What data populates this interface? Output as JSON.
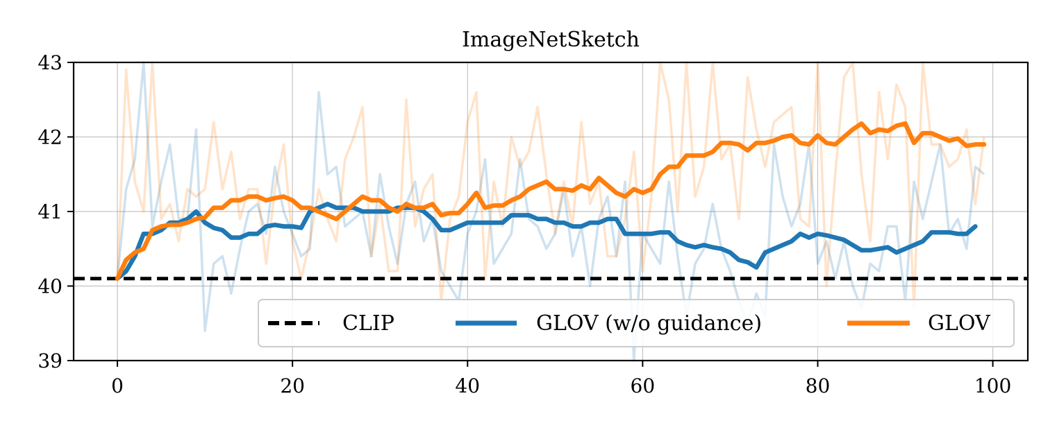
{
  "chart_data": {
    "type": "line",
    "title": "ImageNetSketch",
    "xlabel": "",
    "ylabel": "",
    "xlim": [
      -5,
      104
    ],
    "ylim": [
      39,
      43
    ],
    "xticks": [
      0,
      20,
      40,
      60,
      80,
      100
    ],
    "yticks": [
      39,
      40,
      41,
      42,
      43
    ],
    "grid": true,
    "legend": {
      "placement": "lower-right",
      "columns": 3
    },
    "baseline": {
      "name": "CLIP",
      "value": 40.1,
      "color": "#000000",
      "style": "dashed"
    },
    "series": [
      {
        "name": "GLOV (w/o guidance)",
        "color": "#1f77b4",
        "smoothed": [
          40.1,
          40.2,
          40.4,
          40.7,
          40.7,
          40.75,
          40.85,
          40.85,
          40.9,
          41.0,
          40.85,
          40.78,
          40.75,
          40.65,
          40.65,
          40.7,
          40.7,
          40.8,
          40.82,
          40.8,
          40.8,
          40.78,
          41.0,
          41.05,
          41.1,
          41.05,
          41.05,
          41.05,
          41.0,
          41.0,
          41.0,
          41.0,
          41.05,
          41.05,
          41.05,
          41.0,
          40.9,
          40.75,
          40.75,
          40.8,
          40.85,
          40.85,
          40.85,
          40.85,
          40.85,
          40.95,
          40.95,
          40.95,
          40.9,
          40.9,
          40.85,
          40.85,
          40.8,
          40.8,
          40.85,
          40.85,
          40.9,
          40.9,
          40.7,
          40.7,
          40.7,
          40.7,
          40.72,
          40.72,
          40.6,
          40.55,
          40.52,
          40.55,
          40.52,
          40.5,
          40.45,
          40.35,
          40.32,
          40.25,
          40.45,
          40.5,
          40.55,
          40.6,
          40.7,
          40.65,
          40.7,
          40.68,
          40.65,
          40.62,
          40.55,
          40.48,
          40.48,
          40.5,
          40.52,
          40.45,
          40.5,
          40.55,
          40.6,
          40.72,
          40.72,
          40.72,
          40.7,
          40.7,
          40.8
        ],
        "raw": [
          40.1,
          41.3,
          41.7,
          43.0,
          40.8,
          41.4,
          41.9,
          40.9,
          40.9,
          42.1,
          39.4,
          40.3,
          40.4,
          39.9,
          40.5,
          41.0,
          41.1,
          40.7,
          41.6,
          41.0,
          40.7,
          40.4,
          40.5,
          42.6,
          41.5,
          41.6,
          40.8,
          40.9,
          41.0,
          40.4,
          41.5,
          40.8,
          40.3,
          41.1,
          41.4,
          40.6,
          40.9,
          40.2,
          40.0,
          39.8,
          40.7,
          41.0,
          41.7,
          40.3,
          40.5,
          40.7,
          41.7,
          40.9,
          40.8,
          40.5,
          40.7,
          41.3,
          40.4,
          40.8,
          40.0,
          40.9,
          41.2,
          40.4,
          41.4,
          38.9,
          40.7,
          40.5,
          40.3,
          41.4,
          40.4,
          39.6,
          40.3,
          40.5,
          41.1,
          40.5,
          40.2,
          39.8,
          39.5,
          39.9,
          39.6,
          41.9,
          41.2,
          40.8,
          41.1,
          41.9,
          40.3,
          40.6,
          40.1,
          40.6,
          40.0,
          39.7,
          40.3,
          40.2,
          40.8,
          40.8,
          39.8,
          41.4,
          40.9,
          41.4,
          41.9,
          40.7,
          40.9,
          40.5,
          41.6,
          41.5
        ]
      },
      {
        "name": "GLOV",
        "color": "#ff7f0e",
        "smoothed": [
          40.1,
          40.35,
          40.45,
          40.5,
          40.75,
          40.8,
          40.82,
          40.82,
          40.85,
          40.9,
          40.92,
          41.05,
          41.05,
          41.15,
          41.15,
          41.2,
          41.2,
          41.15,
          41.18,
          41.2,
          41.15,
          41.05,
          41.05,
          41.0,
          40.95,
          40.9,
          41.0,
          41.1,
          41.2,
          41.15,
          41.15,
          41.05,
          41.0,
          41.1,
          41.05,
          41.05,
          41.1,
          40.95,
          40.98,
          40.98,
          41.1,
          41.25,
          41.05,
          41.08,
          41.08,
          41.15,
          41.2,
          41.3,
          41.35,
          41.4,
          41.3,
          41.3,
          41.28,
          41.35,
          41.3,
          41.45,
          41.35,
          41.25,
          41.2,
          41.3,
          41.25,
          41.3,
          41.5,
          41.6,
          41.6,
          41.75,
          41.75,
          41.75,
          41.8,
          41.92,
          41.92,
          41.9,
          41.82,
          41.92,
          41.92,
          41.95,
          42.0,
          42.02,
          41.92,
          41.9,
          42.02,
          41.92,
          41.9,
          42.0,
          42.1,
          42.18,
          42.05,
          42.1,
          42.08,
          42.15,
          42.18,
          41.92,
          42.05,
          42.05,
          42.0,
          41.95,
          41.98,
          41.88,
          41.9,
          41.9
        ],
        "raw": [
          40.1,
          42.9,
          41.4,
          41.0,
          43.0,
          40.9,
          41.1,
          40.6,
          41.3,
          41.2,
          41.3,
          42.2,
          41.3,
          41.8,
          40.9,
          41.3,
          41.3,
          40.3,
          41.3,
          41.9,
          40.6,
          40.1,
          40.6,
          41.3,
          40.9,
          40.6,
          41.7,
          42.0,
          42.4,
          40.4,
          41.1,
          40.2,
          40.2,
          42.5,
          40.8,
          41.3,
          41.5,
          39.8,
          40.9,
          41.2,
          42.2,
          42.6,
          40.1,
          41.4,
          40.8,
          42.0,
          41.6,
          41.8,
          42.4,
          41.5,
          40.7,
          41.4,
          40.8,
          42.2,
          41.1,
          41.4,
          40.4,
          40.4,
          40.9,
          41.8,
          40.2,
          41.2,
          43.0,
          42.5,
          41.0,
          43.0,
          41.2,
          41.6,
          43.0,
          41.7,
          41.9,
          40.9,
          42.8,
          42.1,
          41.6,
          42.2,
          42.3,
          42.4,
          40.9,
          40.8,
          43.0,
          40.0,
          41.5,
          42.8,
          43.0,
          41.5,
          40.6,
          42.6,
          41.7,
          42.7,
          42.4,
          39.7,
          43.0,
          41.9,
          41.9,
          41.6,
          41.7,
          42.1,
          41.1,
          42.0
        ]
      }
    ]
  }
}
